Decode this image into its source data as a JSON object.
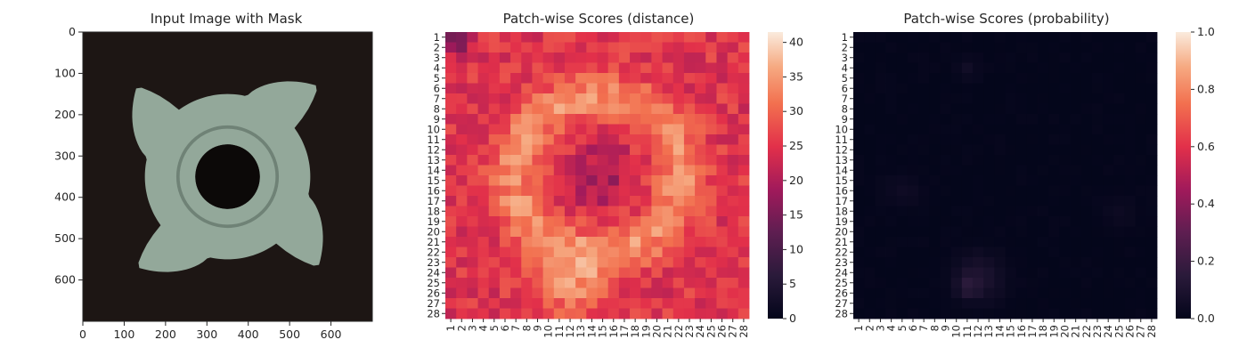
{
  "figure": {
    "panels": 3
  },
  "chart_data": [
    {
      "type": "image",
      "title": "Input Image with Mask",
      "xlim": [
        0,
        700
      ],
      "ylim": [
        700,
        0
      ],
      "x_ticks": [
        "0",
        "100",
        "200",
        "300",
        "400",
        "500",
        "600"
      ],
      "y_ticks": [
        "0",
        "100",
        "200",
        "300",
        "400",
        "500",
        "600"
      ],
      "x_tick_values": [
        0,
        100,
        200,
        300,
        400,
        500,
        600
      ],
      "y_tick_values": [
        0,
        100,
        200,
        300,
        400,
        500,
        600
      ],
      "image_content": {
        "background_color": "#1d1614",
        "object_color": "#93a89a",
        "hole_color": "#0c0908",
        "object_center": [
          350,
          350
        ],
        "outer_radius": 200,
        "inner_radius": 120,
        "hole_radius": 78,
        "tab_angles_deg": [
          315,
          45,
          135,
          225
        ]
      }
    },
    {
      "type": "heatmap",
      "title": "Patch-wise Scores (distance)",
      "rows": 28,
      "cols": 28,
      "x_ticks": [
        "1",
        "2",
        "3",
        "4",
        "5",
        "6",
        "7",
        "8",
        "9",
        "10",
        "11",
        "12",
        "13",
        "14",
        "15",
        "16",
        "17",
        "18",
        "19",
        "20",
        "21",
        "22",
        "23",
        "24",
        "25",
        "26",
        "27",
        "28"
      ],
      "y_ticks": [
        "1",
        "2",
        "3",
        "4",
        "5",
        "6",
        "7",
        "8",
        "9",
        "10",
        "11",
        "12",
        "13",
        "14",
        "15",
        "16",
        "17",
        "18",
        "19",
        "20",
        "21",
        "22",
        "23",
        "24",
        "25",
        "26",
        "27",
        "28"
      ],
      "colormap": "rocket",
      "vmin": 0,
      "vmax": 41.5,
      "colorbar_ticks": [
        "0",
        "5",
        "10",
        "15",
        "20",
        "25",
        "30",
        "35",
        "40"
      ],
      "colorbar_tick_values": [
        0,
        5,
        10,
        15,
        20,
        25,
        30,
        35,
        40
      ],
      "value_model": {
        "base": 25,
        "ring": {
          "cx": 14.5,
          "cy": 14.5,
          "r": 7.6,
          "width": 2.3,
          "amp": 9
        },
        "hot": {
          "cx": 12,
          "cy": 25.2,
          "r": 3.2,
          "amp": 8
        },
        "center_dip": {
          "cx": 15,
          "cy": 14.5,
          "r": 3.2,
          "amp": 6
        },
        "corner_dip": {
          "cx": 1,
          "cy": 1,
          "r": 2,
          "amp": 10
        },
        "noise": 3.5
      }
    },
    {
      "type": "heatmap",
      "title": "Patch-wise Scores (probability)",
      "rows": 28,
      "cols": 28,
      "x_ticks": [
        "1",
        "2",
        "3",
        "4",
        "5",
        "6",
        "7",
        "8",
        "9",
        "10",
        "11",
        "12",
        "13",
        "14",
        "15",
        "16",
        "17",
        "18",
        "19",
        "20",
        "21",
        "22",
        "23",
        "24",
        "25",
        "26",
        "27",
        "28"
      ],
      "y_ticks": [
        "1",
        "2",
        "3",
        "4",
        "5",
        "6",
        "7",
        "8",
        "9",
        "10",
        "11",
        "12",
        "13",
        "14",
        "15",
        "16",
        "17",
        "18",
        "19",
        "20",
        "21",
        "22",
        "23",
        "24",
        "25",
        "26",
        "27",
        "28"
      ],
      "colormap": "rocket",
      "vmin": 0.0,
      "vmax": 1.0,
      "colorbar_ticks": [
        "0.0",
        "0.2",
        "0.4",
        "0.6",
        "0.8",
        "1.0"
      ],
      "colorbar_tick_values": [
        0.0,
        0.2,
        0.4,
        0.6,
        0.8,
        1.0
      ],
      "value_model": {
        "base": 0.005,
        "blobs": [
          {
            "cx": 12,
            "cy": 24.5,
            "r": 2.2,
            "amp": 0.1
          },
          {
            "cx": 11,
            "cy": 25.5,
            "r": 1.0,
            "amp": 0.08
          },
          {
            "cx": 11,
            "cy": 4,
            "r": 1.0,
            "amp": 0.05
          },
          {
            "cx": 5,
            "cy": 16,
            "r": 1.5,
            "amp": 0.04
          },
          {
            "cx": 25,
            "cy": 18,
            "r": 1.5,
            "amp": 0.03
          }
        ],
        "noise": 0.02
      }
    }
  ]
}
